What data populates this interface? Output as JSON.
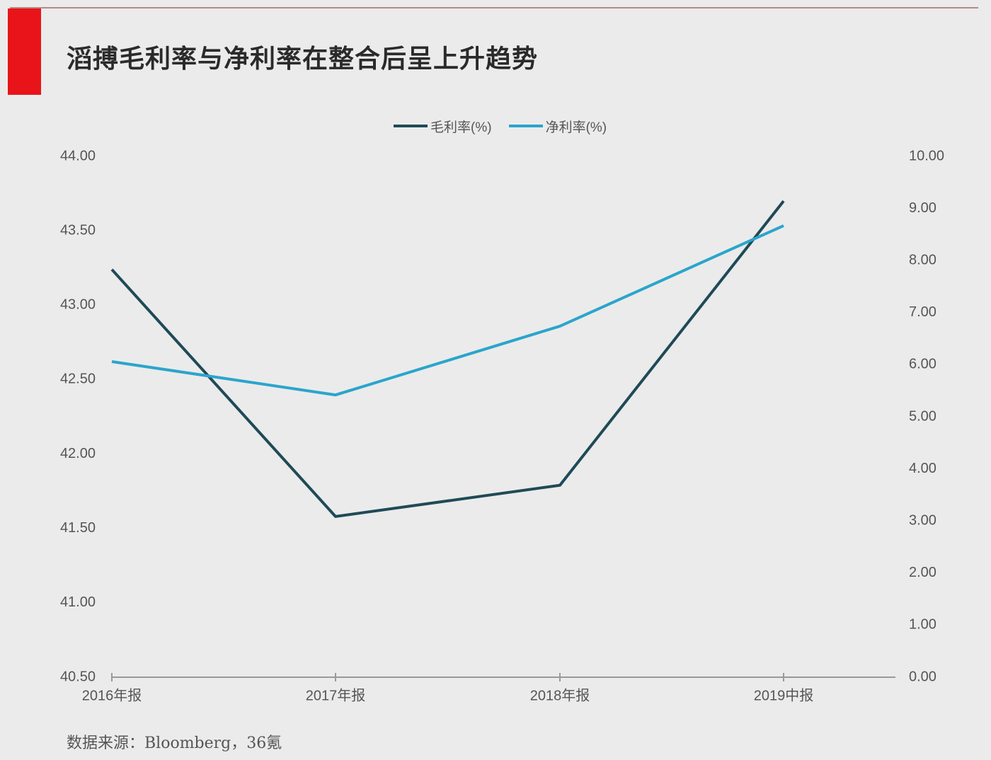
{
  "title": "滔搏毛利率与净利率在整合后呈上升趋势",
  "source": "数据来源：Bloomberg，36氪",
  "colors": {
    "accent_red": "#e8141a",
    "gross_margin": "#1f4a57",
    "net_margin": "#2aa5cc",
    "background": "#ebebeb",
    "axis": "#999999"
  },
  "legend": [
    {
      "label": "毛利率(%)",
      "color": "#1f4a57"
    },
    {
      "label": "净利率(%)",
      "color": "#2aa5cc"
    }
  ],
  "chart_data": {
    "type": "line",
    "title": "滔搏毛利率与净利率在整合后呈上升趋势",
    "categories": [
      "2016年报",
      "2017年报",
      "2018年报",
      "2019中报"
    ],
    "series": [
      {
        "name": "毛利率(%)",
        "axis": "left",
        "values": [
          43.24,
          41.58,
          41.79,
          43.7
        ]
      },
      {
        "name": "净利率(%)",
        "axis": "right",
        "values": [
          6.06,
          5.42,
          6.74,
          8.67
        ]
      }
    ],
    "left_axis": {
      "ylim": [
        40.5,
        44.0
      ],
      "ticks": [
        "44.00",
        "43.50",
        "43.00",
        "42.50",
        "42.00",
        "41.50",
        "41.00",
        "40.50"
      ]
    },
    "right_axis": {
      "ylim": [
        0,
        10
      ],
      "ticks": [
        "10.00",
        "9.00",
        "8.00",
        "7.00",
        "6.00",
        "5.00",
        "4.00",
        "3.00",
        "2.00",
        "1.00",
        "0.00"
      ]
    },
    "xlabel": "",
    "ylabel": "",
    "grid": false,
    "legend_position": "top"
  }
}
